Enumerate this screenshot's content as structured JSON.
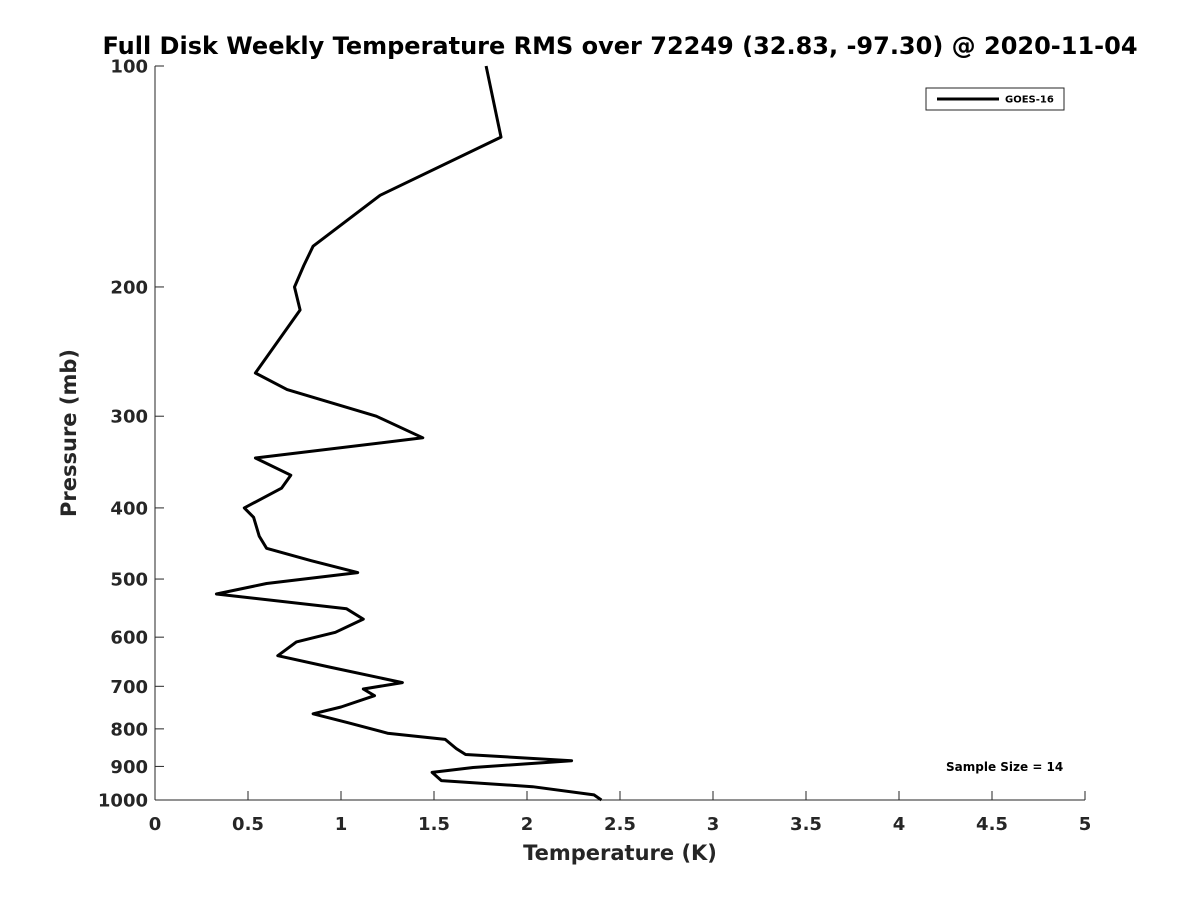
{
  "chart_data": {
    "type": "line",
    "title": "Full Disk Weekly Temperature RMS over 72249 (32.83, -97.30) @ 2020-11-04",
    "xlabel": "Temperature (K)",
    "ylabel": "Pressure (mb)",
    "xlim": [
      0,
      5
    ],
    "ylim": [
      100,
      1000
    ],
    "y_scale": "log",
    "y_reversed": true,
    "x_ticks": [
      "0",
      "0.5",
      "1",
      "1.5",
      "2",
      "2.5",
      "3",
      "3.5",
      "4",
      "4.5",
      "5"
    ],
    "y_ticks": [
      "100",
      "200",
      "300",
      "400",
      "500",
      "600",
      "700",
      "800",
      "900",
      "1000"
    ],
    "grid": false,
    "legend_position": "top-right",
    "annotation": "Sample Size = 14",
    "series": [
      {
        "name": "GOES-16",
        "color": "#000000",
        "points": [
          [
            1.78,
            100
          ],
          [
            1.86,
            125
          ],
          [
            1.21,
            150
          ],
          [
            0.85,
            176
          ],
          [
            0.8,
            187
          ],
          [
            0.75,
            200
          ],
          [
            0.78,
            215
          ],
          [
            0.54,
            262
          ],
          [
            0.71,
            276
          ],
          [
            1.19,
            300
          ],
          [
            1.44,
            321
          ],
          [
            0.54,
            342
          ],
          [
            0.73,
            361
          ],
          [
            0.68,
            376
          ],
          [
            0.48,
            400
          ],
          [
            0.53,
            412
          ],
          [
            0.56,
            437
          ],
          [
            0.6,
            454
          ],
          [
            0.84,
            472
          ],
          [
            1.09,
            490
          ],
          [
            0.6,
            507
          ],
          [
            0.33,
            524
          ],
          [
            1.03,
            549
          ],
          [
            1.12,
            567
          ],
          [
            0.97,
            591
          ],
          [
            0.76,
            609
          ],
          [
            0.66,
            636
          ],
          [
            0.94,
            659
          ],
          [
            1.33,
            692
          ],
          [
            1.12,
            706
          ],
          [
            1.18,
            721
          ],
          [
            1.0,
            747
          ],
          [
            0.85,
            763
          ],
          [
            1.04,
            785
          ],
          [
            1.25,
            811
          ],
          [
            1.56,
            827
          ],
          [
            1.62,
            851
          ],
          [
            1.67,
            867
          ],
          [
            2.24,
            884
          ],
          [
            1.71,
            903
          ],
          [
            1.49,
            917
          ],
          [
            1.54,
            941
          ],
          [
            2.03,
            959
          ],
          [
            2.36,
            984
          ],
          [
            2.4,
            1000
          ]
        ]
      }
    ]
  }
}
